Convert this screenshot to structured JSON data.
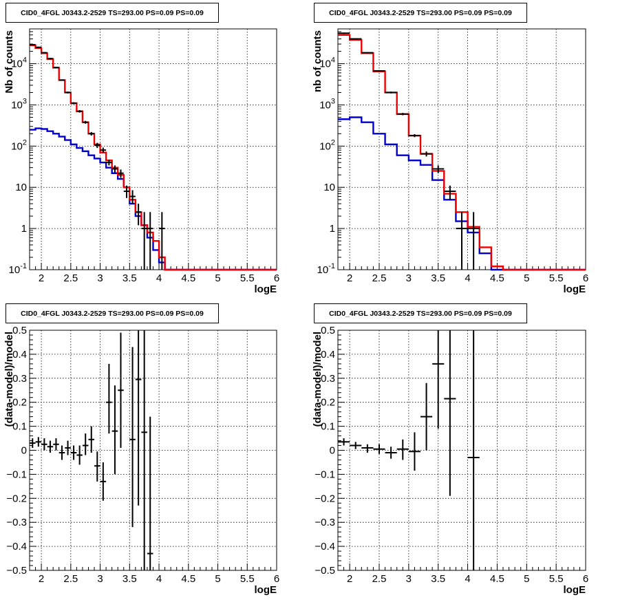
{
  "panels": [
    {
      "title": "CID0_4FGL J0343.2-2529 TS=293.00 PS=0.09 PS=0.09",
      "chart_data": {
        "type": "line",
        "xlabel": "logE",
        "ylabel": "Nb of counts",
        "xlim": [
          1.8,
          6.0
        ],
        "ylim": [
          0.1,
          70000
        ],
        "log_y": true,
        "grid": true,
        "x_ticks": [
          "2",
          "2.5",
          "3",
          "3.5",
          "4",
          "4.5",
          "5",
          "5.5",
          "6"
        ],
        "y_ticks": [
          "10^-1",
          "1",
          "10",
          "10^2",
          "10^3",
          "10^4"
        ],
        "colors": {
          "total_model": "#ee0000",
          "background_model": "#0000cc",
          "data": "#000000"
        },
        "bin_edges": [
          1.8,
          1.9,
          2.0,
          2.1,
          2.2,
          2.3,
          2.4,
          2.5,
          2.6,
          2.7,
          2.8,
          2.9,
          3.0,
          3.1,
          3.2,
          3.3,
          3.4,
          3.5,
          3.6,
          3.7,
          3.8,
          3.9,
          4.0,
          4.1,
          4.2,
          4.3,
          4.4,
          4.5,
          4.6,
          4.7,
          4.8,
          4.9,
          5.0,
          5.1,
          5.2,
          5.3,
          5.4,
          5.5,
          5.6,
          5.7,
          5.8,
          5.9,
          6.0
        ],
        "series": [
          {
            "values": [
              28000,
              24000,
              18000,
              13000,
              8000,
              4000,
              2000,
              1100,
              700,
              380,
              200,
              110,
              70,
              45,
              30,
              20,
              10,
              5,
              2.5,
              1.2,
              0.8,
              0.5,
              0.2,
              0.1,
              0.1,
              0.1,
              0.1,
              0.1,
              0.1,
              0.1,
              0.1,
              0.1,
              0.1,
              0.1,
              0.1,
              0.1,
              0.1,
              0.1,
              0.1,
              0.1,
              0.1,
              0.1
            ]
          },
          {
            "values": [
              250,
              270,
              260,
              230,
              200,
              170,
              140,
              110,
              90,
              75,
              60,
              50,
              40,
              30,
              22,
              16,
              10,
              4,
              2,
              1.2,
              0.6,
              0.3,
              0.15,
              0.1,
              0.1,
              0.1,
              0.1,
              0.1,
              0.1,
              0.1,
              0.1,
              0.1,
              0.1,
              0.1,
              0.1,
              0.1,
              0.1,
              0.1,
              0.1,
              0.1,
              0.1,
              0.1
            ]
          }
        ],
        "points": [
          {
            "x": 1.85,
            "y": 29000,
            "lo": 28000,
            "hi": 30000
          },
          {
            "x": 1.95,
            "y": 25000,
            "lo": 24000,
            "hi": 26000
          },
          {
            "x": 2.05,
            "y": 18500,
            "lo": 17800,
            "hi": 19200
          },
          {
            "x": 2.15,
            "y": 13300,
            "lo": 12800,
            "hi": 13800
          },
          {
            "x": 2.25,
            "y": 8100,
            "lo": 7800,
            "hi": 8400
          },
          {
            "x": 2.35,
            "y": 4000,
            "lo": 3850,
            "hi": 4150
          },
          {
            "x": 2.45,
            "y": 2000,
            "lo": 1900,
            "hi": 2100
          },
          {
            "x": 2.55,
            "y": 1100,
            "lo": 1040,
            "hi": 1160
          },
          {
            "x": 2.65,
            "y": 700,
            "lo": 650,
            "hi": 750
          },
          {
            "x": 2.75,
            "y": 380,
            "lo": 350,
            "hi": 410
          },
          {
            "x": 2.85,
            "y": 200,
            "lo": 180,
            "hi": 220
          },
          {
            "x": 2.95,
            "y": 105,
            "lo": 90,
            "hi": 120
          },
          {
            "x": 3.05,
            "y": 80,
            "lo": 70,
            "hi": 92
          },
          {
            "x": 3.15,
            "y": 40,
            "lo": 34,
            "hi": 47
          },
          {
            "x": 3.25,
            "y": 28,
            "lo": 23,
            "hi": 34
          },
          {
            "x": 3.35,
            "y": 22,
            "lo": 17,
            "hi": 27
          },
          {
            "x": 3.45,
            "y": 8,
            "lo": 5.5,
            "hi": 11
          },
          {
            "x": 3.55,
            "y": 6,
            "lo": 4,
            "hi": 8.5
          },
          {
            "x": 3.65,
            "y": 2.5,
            "lo": 1.2,
            "hi": 4
          },
          {
            "x": 3.75,
            "y": 1,
            "lo": 0.1,
            "hi": 2.5
          },
          {
            "x": 3.85,
            "y": 1,
            "lo": 0.1,
            "hi": 2.5
          },
          {
            "x": 4.05,
            "y": 1,
            "lo": 0.1,
            "hi": 2.5
          }
        ]
      }
    },
    {
      "title": "CID0_4FGL J0343.2-2529 TS=293.00 PS=0.09 PS=0.09",
      "chart_data": {
        "type": "line",
        "xlabel": "logE",
        "ylabel": "nb of counts",
        "xlim": [
          1.8,
          6.0
        ],
        "ylim": [
          0.1,
          70000
        ],
        "log_y": true,
        "grid": true,
        "x_ticks": [
          "2",
          "2.5",
          "3",
          "3.5",
          "4",
          "4.5",
          "5",
          "5.5",
          "6"
        ],
        "y_ticks": [
          "10^-1",
          "1",
          "10",
          "10^2",
          "10^3",
          "10^4"
        ],
        "colors": {
          "total_model": "#ee0000",
          "background_model": "#0000cc",
          "data": "#000000"
        },
        "bin_edges": [
          1.8,
          2.0,
          2.2,
          2.4,
          2.6,
          2.8,
          3.0,
          3.2,
          3.4,
          3.6,
          3.8,
          4.0,
          4.2,
          4.4,
          4.6,
          4.8,
          5.0,
          5.2,
          5.4,
          5.6,
          5.8,
          6.0
        ],
        "series": [
          {
            "values": [
              50000,
              38000,
              18000,
              6500,
              2000,
              600,
              180,
              65,
              25,
              7,
              2.5,
              1.1,
              0.35,
              0.12,
              0.1,
              0.1,
              0.1,
              0.1,
              0.1,
              0.1,
              0.1
            ]
          },
          {
            "values": [
              450,
              500,
              380,
              200,
              110,
              60,
              45,
              35,
              15,
              5,
              1.5,
              0.8,
              0.25,
              0.1,
              0.1,
              0.1,
              0.1,
              0.1,
              0.1,
              0.1,
              0.1
            ]
          }
        ],
        "points": [
          {
            "x": 1.9,
            "y": 55000,
            "lo": 53000,
            "hi": 57000
          },
          {
            "x": 2.1,
            "y": 40000,
            "lo": 38500,
            "hi": 41500
          },
          {
            "x": 2.3,
            "y": 18500,
            "lo": 17800,
            "hi": 19200
          },
          {
            "x": 2.5,
            "y": 6700,
            "lo": 6400,
            "hi": 7000
          },
          {
            "x": 2.7,
            "y": 2000,
            "lo": 1900,
            "hi": 2100
          },
          {
            "x": 2.9,
            "y": 600,
            "lo": 560,
            "hi": 640
          },
          {
            "x": 3.1,
            "y": 180,
            "lo": 165,
            "hi": 195
          },
          {
            "x": 3.3,
            "y": 65,
            "lo": 56,
            "hi": 74
          },
          {
            "x": 3.5,
            "y": 28,
            "lo": 22,
            "hi": 34
          },
          {
            "x": 3.7,
            "y": 8,
            "lo": 5,
            "hi": 11
          },
          {
            "x": 3.9,
            "y": 1,
            "lo": 0.1,
            "hi": 2.5
          },
          {
            "x": 4.1,
            "y": 1,
            "lo": 0.1,
            "hi": 2.5
          }
        ]
      }
    },
    {
      "title": "CID0_4FGL J0343.2-2529 TS=293.00 PS=0.09 PS=0.09",
      "chart_data": {
        "type": "scatter",
        "xlabel": "logE",
        "ylabel": "(data-model)/model",
        "xlim": [
          1.8,
          6.0
        ],
        "ylim": [
          -0.5,
          0.5
        ],
        "grid": true,
        "x_ticks": [
          "2",
          "2.5",
          "3",
          "3.5",
          "4",
          "4.5",
          "5",
          "5.5",
          "6"
        ],
        "y_ticks": [
          "-0.5",
          "-0.4",
          "-0.3",
          "-0.2",
          "-0.1",
          "0",
          "0.1",
          "0.2",
          "0.3",
          "0.4",
          "0.5"
        ],
        "x_halfwidth": 0.05,
        "points": [
          {
            "x": 1.85,
            "y": 0.03,
            "lo": 0.01,
            "hi": 0.05
          },
          {
            "x": 1.95,
            "y": 0.035,
            "lo": 0.015,
            "hi": 0.055
          },
          {
            "x": 2.05,
            "y": 0.025,
            "lo": 0.0,
            "hi": 0.05
          },
          {
            "x": 2.15,
            "y": 0.015,
            "lo": -0.01,
            "hi": 0.04
          },
          {
            "x": 2.25,
            "y": 0.025,
            "lo": 0.0,
            "hi": 0.05
          },
          {
            "x": 2.35,
            "y": -0.01,
            "lo": -0.04,
            "hi": 0.02
          },
          {
            "x": 2.45,
            "y": 0.01,
            "lo": -0.02,
            "hi": 0.04
          },
          {
            "x": 2.55,
            "y": -0.01,
            "lo": -0.04,
            "hi": 0.02
          },
          {
            "x": 2.65,
            "y": -0.02,
            "lo": -0.06,
            "hi": 0.02
          },
          {
            "x": 2.75,
            "y": 0.02,
            "lo": -0.02,
            "hi": 0.07
          },
          {
            "x": 2.85,
            "y": 0.045,
            "lo": -0.01,
            "hi": 0.1
          },
          {
            "x": 2.95,
            "y": -0.065,
            "lo": -0.13,
            "hi": -0.005
          },
          {
            "x": 3.05,
            "y": -0.13,
            "lo": -0.21,
            "hi": -0.05
          },
          {
            "x": 3.15,
            "y": 0.2,
            "lo": 0.07,
            "hi": 0.36
          },
          {
            "x": 3.25,
            "y": 0.08,
            "lo": -0.1,
            "hi": 0.27
          },
          {
            "x": 3.35,
            "y": 0.25,
            "lo": 0.01,
            "hi": 0.49
          },
          {
            "x": 3.55,
            "y": 0.045,
            "lo": -0.32,
            "hi": 0.43
          },
          {
            "x": 3.65,
            "y": 0.295,
            "lo": -0.23,
            "hi": 0.5
          },
          {
            "x": 3.75,
            "y": 0.075,
            "lo": -0.5,
            "hi": 0.5
          },
          {
            "x": 3.85,
            "y": -0.43,
            "lo": -0.5,
            "hi": 0.14
          }
        ]
      }
    },
    {
      "title": "CID0_4FGL J0343.2-2529 TS=293.00 PS=0.09 PS=0.09",
      "chart_data": {
        "type": "scatter",
        "xlabel": "logE",
        "ylabel": "(data-model)/model",
        "xlim": [
          1.8,
          6.0
        ],
        "ylim": [
          -0.5,
          0.5
        ],
        "grid": true,
        "x_ticks": [
          "2",
          "2.5",
          "3",
          "3.5",
          "4",
          "4.5",
          "5",
          "5.5",
          "6"
        ],
        "y_ticks": [
          "-0.5",
          "-0.4",
          "-0.3",
          "-0.2",
          "-0.1",
          "0",
          "0.1",
          "0.2",
          "0.3",
          "0.4",
          "0.5"
        ],
        "x_halfwidth": 0.1,
        "points": [
          {
            "x": 1.9,
            "y": 0.035,
            "lo": 0.02,
            "hi": 0.05
          },
          {
            "x": 2.1,
            "y": 0.02,
            "lo": 0.005,
            "hi": 0.035
          },
          {
            "x": 2.3,
            "y": 0.01,
            "lo": -0.01,
            "hi": 0.025
          },
          {
            "x": 2.5,
            "y": 0.005,
            "lo": -0.015,
            "hi": 0.025
          },
          {
            "x": 2.7,
            "y": -0.01,
            "lo": -0.035,
            "hi": 0.015
          },
          {
            "x": 2.9,
            "y": 0.005,
            "lo": -0.04,
            "hi": 0.045
          },
          {
            "x": 3.1,
            "y": -0.005,
            "lo": -0.085,
            "hi": 0.075
          },
          {
            "x": 3.3,
            "y": 0.14,
            "lo": 0.0,
            "hi": 0.28
          },
          {
            "x": 3.5,
            "y": 0.36,
            "lo": 0.09,
            "hi": 0.5
          },
          {
            "x": 3.7,
            "y": 0.215,
            "lo": -0.19,
            "hi": 0.5
          },
          {
            "x": 4.1,
            "y": -0.03,
            "lo": -0.5,
            "hi": 0.5
          }
        ]
      }
    }
  ]
}
